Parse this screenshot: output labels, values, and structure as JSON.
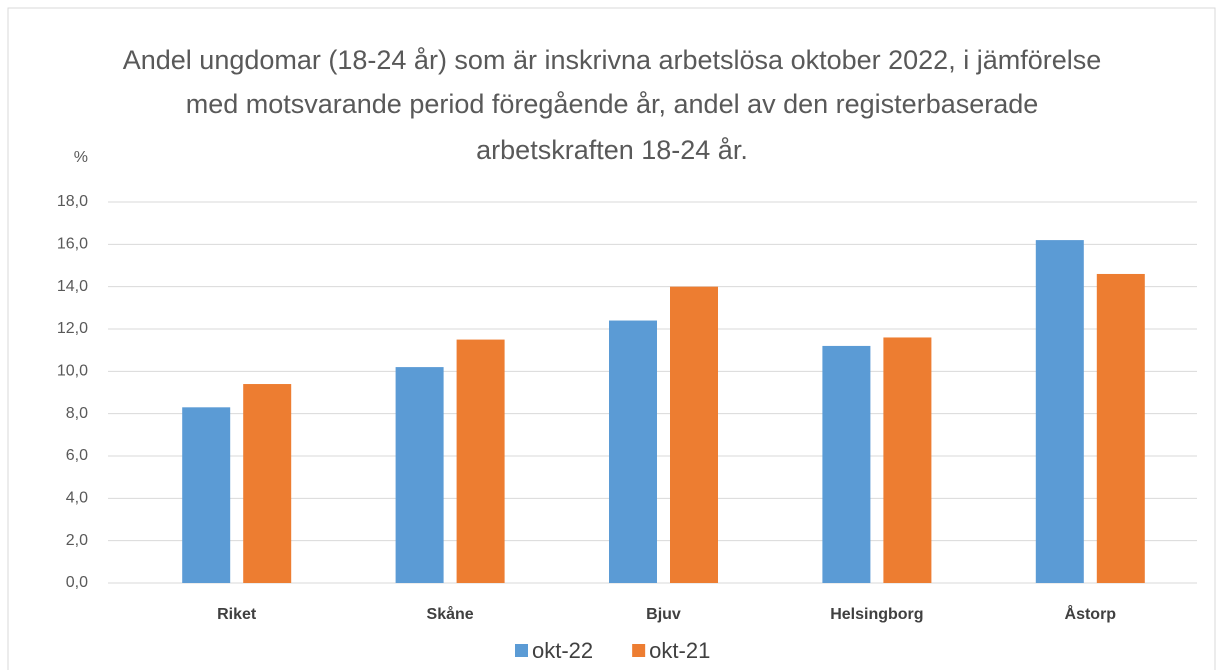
{
  "chart_data": {
    "type": "bar",
    "title": [
      "Andel ungdomar (18-24 år) som är inskrivna arbetslösa oktober 2022, i jämförelse",
      "med motsvarande period föregående år, andel av den registerbaserade",
      "arbetskraften 18-24 år."
    ],
    "y_label": "%",
    "categories": [
      "Riket",
      "Skåne",
      "Bjuv",
      "Helsingborg",
      "Åstorp"
    ],
    "series": [
      {
        "name": "okt-22",
        "color": "#5b9bd5",
        "values": [
          8.3,
          10.2,
          12.4,
          11.2,
          16.2
        ]
      },
      {
        "name": "okt-21",
        "color": "#ed7d31",
        "values": [
          9.4,
          11.5,
          14.0,
          11.6,
          14.6
        ]
      }
    ],
    "ylim": [
      0,
      18
    ],
    "yticks": [
      {
        "value": 0,
        "label": "0,0"
      },
      {
        "value": 2,
        "label": "2,0"
      },
      {
        "value": 4,
        "label": "4,0"
      },
      {
        "value": 6,
        "label": "6,0"
      },
      {
        "value": 8,
        "label": "8,0"
      },
      {
        "value": 10,
        "label": "10,0"
      },
      {
        "value": 12,
        "label": "12,0"
      },
      {
        "value": 14,
        "label": "14,0"
      },
      {
        "value": 16,
        "label": "16,0"
      },
      {
        "value": 18,
        "label": "18,0"
      }
    ],
    "grid": true,
    "legend": "bottom"
  }
}
